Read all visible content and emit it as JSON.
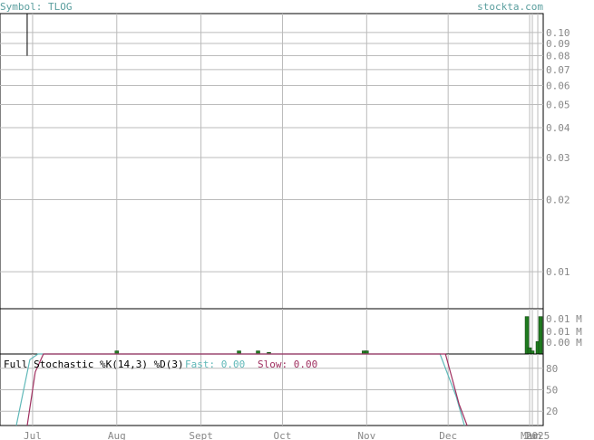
{
  "header": {
    "symbol_label": "Symbol: TLOG",
    "site": "stockta.com"
  },
  "chart_data": [
    {
      "type": "line",
      "panel": "price",
      "yscale": "log",
      "ylim": [
        0.007,
        0.12
      ],
      "ytick_labels": [
        {
          "label": "0.10",
          "value": 0.1
        },
        {
          "label": "0.09",
          "value": 0.09
        },
        {
          "label": "0.08",
          "value": 0.08
        },
        {
          "label": "0.07",
          "value": 0.07
        },
        {
          "label": "0.06",
          "value": 0.06
        },
        {
          "label": "0.05",
          "value": 0.05
        },
        {
          "label": "0.04",
          "value": 0.04
        },
        {
          "label": "0.03",
          "value": 0.03
        },
        {
          "label": "0.02",
          "value": 0.02
        },
        {
          "label": "0.01",
          "value": 0.01
        }
      ],
      "x_date_range": [
        "2024-06-19",
        "2025-01-05"
      ],
      "x_months": [
        {
          "label": "Jul",
          "date": "2024-07-01"
        },
        {
          "label": "Aug",
          "date": "2024-08-01"
        },
        {
          "label": "Sept",
          "date": "2024-09-01"
        },
        {
          "label": "Oct",
          "date": "2024-10-01"
        },
        {
          "label": "Nov",
          "date": "2024-11-01"
        },
        {
          "label": "Dec",
          "date": "2024-12-01"
        },
        {
          "label": "Mar",
          "date": "2024-12-31"
        },
        {
          "label": "Jun",
          "date": "2025-01-01"
        },
        {
          "label": "2025",
          "date": "2025-01-03"
        }
      ],
      "price_series": [
        {
          "date": "2024-06-29",
          "high": 0.12,
          "low": 0.08
        }
      ],
      "grid": true,
      "colors": {
        "grid": "#bbbbbb",
        "axis_text": "#888888",
        "price_line": "#000000"
      }
    },
    {
      "type": "bar",
      "panel": "volume",
      "ytick_labels": [
        "0.01 M",
        "0.01 M",
        "0.00 M"
      ],
      "bars": [
        {
          "date": "2024-08-01",
          "value": 0.001
        },
        {
          "date": "2024-09-15",
          "value": 0.001
        },
        {
          "date": "2024-09-22",
          "value": 0.001
        },
        {
          "date": "2024-09-26",
          "value": 0.0005
        },
        {
          "date": "2024-10-31",
          "value": 0.001
        },
        {
          "date": "2024-11-01",
          "value": 0.001
        },
        {
          "date": "2024-12-30",
          "value": 0.012
        },
        {
          "date": "2024-12-31",
          "value": 0.002
        },
        {
          "date": "2025-01-01",
          "value": 0.001
        },
        {
          "date": "2025-01-03",
          "value": 0.004
        },
        {
          "date": "2025-01-04",
          "value": 0.012
        }
      ],
      "ymax": 0.0145,
      "colors": {
        "bar": "#1f7a1f",
        "bar_edge": "#0d3d0d"
      }
    },
    {
      "type": "line",
      "panel": "stochastic",
      "title": "Full Stochastic %K(14,3) %D(3)",
      "fast_label": "Fast: 0.00",
      "slow_label": "Slow: 0.00",
      "ylim": [
        0,
        100
      ],
      "ytick_labels": [
        "80",
        "50",
        "20"
      ],
      "series": [
        {
          "name": "Fast",
          "color": "#5fb8b8",
          "points": [
            {
              "date": "2024-06-25",
              "value": 0
            },
            {
              "date": "2024-06-30",
              "value": 92
            },
            {
              "date": "2024-07-03",
              "value": 100
            },
            {
              "date": "2024-11-28",
              "value": 100
            },
            {
              "date": "2024-12-04",
              "value": 40
            },
            {
              "date": "2024-12-07",
              "value": 0
            }
          ]
        },
        {
          "name": "Slow",
          "color": "#a03060",
          "points": [
            {
              "date": "2024-06-29",
              "value": 0
            },
            {
              "date": "2024-07-02",
              "value": 75
            },
            {
              "date": "2024-07-05",
              "value": 100
            },
            {
              "date": "2024-11-30",
              "value": 100
            },
            {
              "date": "2024-12-05",
              "value": 30
            },
            {
              "date": "2024-12-08",
              "value": 0
            }
          ]
        }
      ]
    }
  ]
}
